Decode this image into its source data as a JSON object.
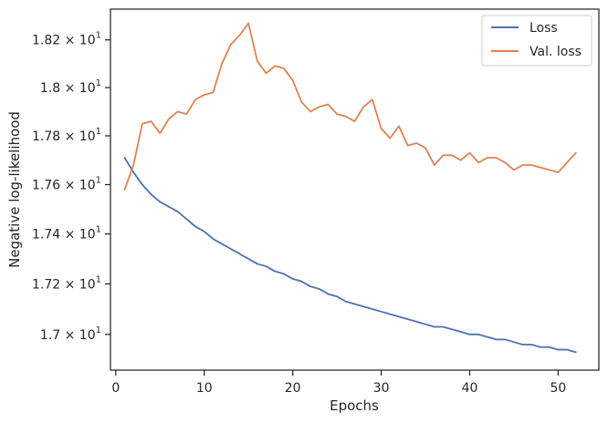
{
  "chart_data": {
    "type": "line",
    "title": "",
    "xlabel": "Epochs",
    "ylabel": "Negative log-likelihood",
    "yscale": "log",
    "xlim": [
      -0.6,
      54.6
    ],
    "ylim": [
      16.86,
      18.33
    ],
    "x_ticks": [
      0,
      10,
      20,
      30,
      40,
      50
    ],
    "x_tick_labels": [
      "0",
      "10",
      "20",
      "30",
      "40",
      "50"
    ],
    "y_ticks": [
      17.0,
      17.2,
      17.4,
      17.6,
      17.8,
      18.0,
      18.2
    ],
    "y_tick_labels": [
      {
        "mantissa": "1.7",
        "exp": "1"
      },
      {
        "mantissa": "1.72",
        "exp": "1"
      },
      {
        "mantissa": "1.74",
        "exp": "1"
      },
      {
        "mantissa": "1.76",
        "exp": "1"
      },
      {
        "mantissa": "1.78",
        "exp": "1"
      },
      {
        "mantissa": "1.8",
        "exp": "1"
      },
      {
        "mantissa": "1.82",
        "exp": "1"
      }
    ],
    "grid": false,
    "legend_position": "upper-right",
    "x": [
      1,
      2,
      3,
      4,
      5,
      6,
      7,
      8,
      9,
      10,
      11,
      12,
      13,
      14,
      15,
      16,
      17,
      18,
      19,
      20,
      21,
      22,
      23,
      24,
      25,
      26,
      27,
      28,
      29,
      30,
      31,
      32,
      33,
      34,
      35,
      36,
      37,
      38,
      39,
      40,
      41,
      42,
      43,
      44,
      45,
      46,
      47,
      48,
      49,
      50,
      51,
      52
    ],
    "series": [
      {
        "name": "Loss",
        "color": "#4c72b0",
        "values": [
          17.71,
          17.65,
          17.6,
          17.56,
          17.53,
          17.51,
          17.49,
          17.46,
          17.43,
          17.41,
          17.38,
          17.36,
          17.34,
          17.32,
          17.3,
          17.28,
          17.27,
          17.25,
          17.24,
          17.22,
          17.21,
          17.19,
          17.18,
          17.16,
          17.15,
          17.13,
          17.12,
          17.11,
          17.1,
          17.09,
          17.08,
          17.07,
          17.06,
          17.05,
          17.04,
          17.03,
          17.03,
          17.02,
          17.01,
          17.0,
          17.0,
          16.99,
          16.98,
          16.98,
          16.97,
          16.96,
          16.96,
          16.95,
          16.95,
          16.94,
          16.94,
          16.93
        ]
      },
      {
        "name": "Val. loss",
        "color": "#dd8452",
        "values": [
          17.58,
          17.68,
          17.85,
          17.86,
          17.81,
          17.87,
          17.9,
          17.89,
          17.95,
          17.97,
          17.98,
          18.1,
          18.18,
          18.22,
          18.27,
          18.11,
          18.06,
          18.09,
          18.08,
          18.03,
          17.94,
          17.9,
          17.92,
          17.93,
          17.89,
          17.88,
          17.86,
          17.92,
          17.95,
          17.83,
          17.79,
          17.84,
          17.76,
          17.77,
          17.75,
          17.68,
          17.72,
          17.72,
          17.7,
          17.73,
          17.69,
          17.71,
          17.71,
          17.69,
          17.66,
          17.68,
          17.68,
          17.67,
          17.66,
          17.65,
          17.69,
          17.73
        ]
      }
    ]
  }
}
